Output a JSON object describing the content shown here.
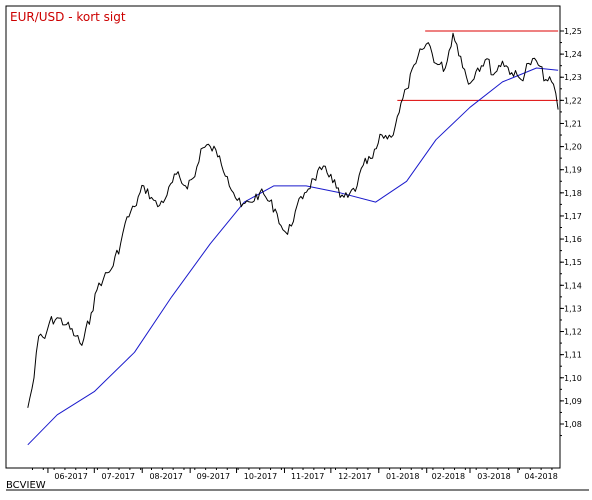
{
  "chart_data": {
    "type": "line",
    "title": "EUR/USD - kort sigt",
    "title_color": "#cc0000",
    "source_label": "BCVIEW",
    "xlabel": "",
    "ylabel": "",
    "x_ticks": [
      "06-2017",
      "07-2017",
      "08-2017",
      "09-2017",
      "10-2017",
      "11-2017",
      "12-2017",
      "01-2018",
      "02-2018",
      "03-2018",
      "04-2018"
    ],
    "y_ticks": [
      "1,08",
      "1,09",
      "1,10",
      "1,11",
      "1,12",
      "1,13",
      "1,14",
      "1,15",
      "1,16",
      "1,17",
      "1,18",
      "1,19",
      "1,20",
      "1,21",
      "1,22",
      "1,23",
      "1,24",
      "1,25"
    ],
    "ylim": [
      1.07,
      1.255
    ],
    "grid": false,
    "colors": {
      "price": "#000000",
      "moving_average": "#1a1acc",
      "resistance": "#dd0000",
      "support": "#dd0000"
    },
    "series": [
      {
        "name": "",
        "x": [
          "2017-05-19",
          "2017-05-23",
          "2017-05-26",
          "2017-05-30",
          "2017-06-02",
          "2017-06-07",
          "2017-06-13",
          "2017-06-19",
          "2017-06-23",
          "2017-06-29",
          "2017-07-04",
          "2017-07-07",
          "2017-07-12",
          "2017-07-18",
          "2017-07-21",
          "2017-07-27",
          "2017-08-02",
          "2017-08-07",
          "2017-08-11",
          "2017-08-17",
          "2017-08-23",
          "2017-08-29",
          "2017-09-04",
          "2017-09-08",
          "2017-09-14",
          "2017-09-20",
          "2017-09-25",
          "2017-09-29",
          "2017-10-04",
          "2017-10-10",
          "2017-10-16",
          "2017-10-20",
          "2017-10-26",
          "2017-10-31",
          "2017-11-03",
          "2017-11-08",
          "2017-11-14",
          "2017-11-20",
          "2017-11-25",
          "2017-12-01",
          "2017-12-07",
          "2017-12-12",
          "2017-12-18",
          "2017-12-22",
          "2017-12-28",
          "2018-01-03",
          "2018-01-09",
          "2018-01-13",
          "2018-01-19",
          "2018-01-25",
          "2018-01-29",
          "2018-02-02",
          "2018-02-07",
          "2018-02-13",
          "2018-02-18",
          "2018-02-23",
          "2018-02-28",
          "2018-03-06",
          "2018-03-12",
          "2018-03-16",
          "2018-03-22",
          "2018-03-28",
          "2018-04-03",
          "2018-04-08",
          "2018-04-13",
          "2018-04-19",
          "2018-04-24",
          "2018-04-27"
        ],
        "values": [
          1.087,
          1.1,
          1.118,
          1.117,
          1.124,
          1.126,
          1.123,
          1.118,
          1.114,
          1.128,
          1.141,
          1.143,
          1.147,
          1.158,
          1.167,
          1.174,
          1.183,
          1.178,
          1.174,
          1.179,
          1.188,
          1.183,
          1.187,
          1.199,
          1.2,
          1.196,
          1.187,
          1.18,
          1.174,
          1.176,
          1.18,
          1.178,
          1.173,
          1.164,
          1.162,
          1.172,
          1.18,
          1.186,
          1.19,
          1.188,
          1.178,
          1.178,
          1.183,
          1.192,
          1.195,
          1.205,
          1.204,
          1.213,
          1.225,
          1.236,
          1.242,
          1.245,
          1.236,
          1.234,
          1.249,
          1.239,
          1.227,
          1.234,
          1.238,
          1.231,
          1.237,
          1.232,
          1.229,
          1.236,
          1.237,
          1.229,
          1.227,
          1.216
        ]
      },
      {
        "name": "",
        "x": [
          "2017-05-19",
          "2017-06-07",
          "2017-07-01",
          "2017-07-27",
          "2017-08-20",
          "2017-09-14",
          "2017-10-06",
          "2017-10-25",
          "2017-11-15",
          "2017-12-07",
          "2017-12-30",
          "2018-01-19",
          "2018-02-07",
          "2018-03-01",
          "2018-03-22",
          "2018-04-13",
          "2018-04-27"
        ],
        "values": [
          1.071,
          1.084,
          1.094,
          1.111,
          1.135,
          1.158,
          1.176,
          1.183,
          1.183,
          1.18,
          1.176,
          1.185,
          1.203,
          1.217,
          1.228,
          1.234,
          1.233
        ]
      },
      {
        "name": "",
        "x": [
          "2018-01-31",
          "2018-04-27"
        ],
        "values": [
          1.25,
          1.25
        ]
      },
      {
        "name": "",
        "x": [
          "2018-01-13",
          "2018-04-27"
        ],
        "values": [
          1.22,
          1.22
        ]
      }
    ]
  }
}
